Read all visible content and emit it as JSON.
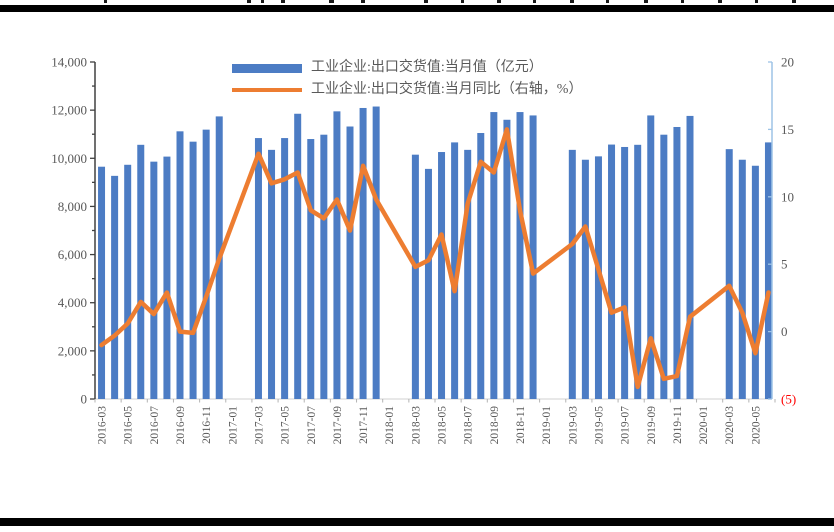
{
  "chart_data": {
    "type": "combo-bar-line",
    "title": "",
    "categories": [
      "2016-03",
      "2016-04",
      "2016-05",
      "2016-06",
      "2016-07",
      "2016-08",
      "2016-09",
      "2016-10",
      "2016-11",
      "2016-12",
      "2017-01",
      "2017-02",
      "2017-03",
      "2017-04",
      "2017-05",
      "2017-06",
      "2017-07",
      "2017-08",
      "2017-09",
      "2017-10",
      "2017-11",
      "2017-12",
      "2018-01",
      "2018-02",
      "2018-03",
      "2018-04",
      "2018-05",
      "2018-06",
      "2018-07",
      "2018-08",
      "2018-09",
      "2018-10",
      "2018-11",
      "2018-12",
      "2019-01",
      "2019-02",
      "2019-03",
      "2019-04",
      "2019-05",
      "2019-06",
      "2019-07",
      "2019-08",
      "2019-09",
      "2019-10",
      "2019-11",
      "2019-12",
      "2020-01",
      "2020-02",
      "2020-03",
      "2020-04",
      "2020-05",
      "2020-06"
    ],
    "series": [
      {
        "name": "工业企业:出口交货值:当月值（亿元）",
        "type": "bar",
        "axis": "left",
        "color": "#4C7CC4",
        "values": [
          9650,
          9270,
          9730,
          10560,
          9860,
          10070,
          11120,
          10690,
          11190,
          11740,
          null,
          null,
          10840,
          10350,
          10840,
          11850,
          10800,
          10980,
          11950,
          11320,
          12090,
          12150,
          null,
          null,
          10150,
          9560,
          10260,
          10660,
          10350,
          11050,
          11920,
          11600,
          11920,
          11780,
          null,
          null,
          10350,
          9940,
          10080,
          10570,
          10470,
          10560,
          11780,
          10980,
          11300,
          11760,
          null,
          null,
          10380,
          9940,
          9690,
          10660
        ]
      },
      {
        "name": "工业企业:出口交货值:当月同比（右轴，%）",
        "type": "line",
        "axis": "right",
        "color": "#ED7D31",
        "values": [
          -1.0,
          -0.3,
          0.6,
          2.2,
          1.3,
          2.9,
          0.0,
          -0.1,
          2.6,
          5.4,
          null,
          null,
          13.2,
          11.0,
          11.3,
          11.8,
          9.0,
          8.4,
          9.8,
          7.5,
          12.3,
          9.8,
          null,
          null,
          4.8,
          5.3,
          7.2,
          3.0,
          9.5,
          12.6,
          11.8,
          15.0,
          9.0,
          4.3,
          null,
          null,
          6.5,
          7.8,
          4.6,
          1.4,
          1.8,
          -4.1,
          -0.5,
          -3.5,
          -3.3,
          1.1,
          null,
          null,
          3.4,
          1.4,
          -1.6,
          2.9
        ]
      }
    ],
    "left_axis": {
      "min": 0,
      "max": 14000,
      "tick_step": 2000,
      "tick_labels": [
        "0",
        "2,000",
        "4,000",
        "6,000",
        "8,000",
        "10,000",
        "12,000",
        "14,000"
      ],
      "color": "#404040",
      "label_color": "#595959"
    },
    "right_axis": {
      "min": -5,
      "max": 20,
      "tick_step": 5,
      "tick_labels": [
        "(5)",
        "0",
        "5",
        "10",
        "15",
        "20"
      ],
      "color": "#9DC3E6",
      "label_color": "#595959",
      "negative_label_color": "#FF0000"
    },
    "x_axis": {
      "line_color": "#D9D9D9",
      "label_color": "#595959",
      "visible_tick_labels": [
        "2016-03",
        "2016-05",
        "2016-07",
        "2016-09",
        "2016-11",
        "2017-01",
        "2017-03",
        "2017-05",
        "2017-07",
        "2017-09",
        "2017-11",
        "2018-01",
        "2018-03",
        "2018-05",
        "2018-07",
        "2018-09",
        "2018-11",
        "2019-01",
        "2019-03",
        "2019-05",
        "2019-07",
        "2019-09",
        "2019-11",
        "2020-01",
        "2020-03",
        "2020-05"
      ],
      "label_every_n_slots": 2
    },
    "legend_position": "top-center"
  }
}
